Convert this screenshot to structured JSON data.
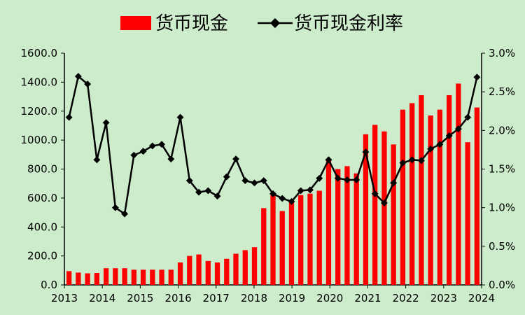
{
  "chart_data": {
    "type": "bar+line",
    "legend_placement": "top-center",
    "grid": false,
    "x_tick_labels": [
      "2013",
      "2014",
      "2015",
      "2016",
      "2017",
      "2018",
      "2019",
      "2020",
      "2021",
      "2022",
      "2023",
      "2024"
    ],
    "left_axis": {
      "range": [
        0,
        1600
      ],
      "tick_labels": [
        "0.0",
        "200.0",
        "400.0",
        "600.0",
        "800.0",
        "1000.0",
        "1200.0",
        "1400.0",
        "1600.0"
      ]
    },
    "right_axis": {
      "range": [
        0,
        3.0
      ],
      "tick_labels": [
        "0.0%",
        "0.5%",
        "1.0%",
        "1.5%",
        "2.0%",
        "2.5%",
        "3.0%"
      ]
    },
    "series": [
      {
        "name": "货币现金",
        "type": "bar",
        "axis": "left",
        "color": "#ff0000",
        "values": [
          95,
          85,
          80,
          82,
          115,
          115,
          115,
          105,
          105,
          105,
          105,
          105,
          155,
          200,
          210,
          165,
          155,
          180,
          215,
          240,
          260,
          530,
          620,
          510,
          580,
          620,
          630,
          650,
          860,
          800,
          820,
          770,
          1040,
          1105,
          1060,
          970,
          1210,
          1255,
          1310,
          1170,
          1210,
          1310,
          1390,
          985,
          1225
        ]
      },
      {
        "name": "货币现金利率",
        "type": "line",
        "axis": "right",
        "color": "#000000",
        "values": [
          2.17,
          2.7,
          2.6,
          1.62,
          2.1,
          1.0,
          0.92,
          1.68,
          1.73,
          1.8,
          1.82,
          1.63,
          2.17,
          1.35,
          1.2,
          1.22,
          1.15,
          1.4,
          1.63,
          1.35,
          1.32,
          1.35,
          1.18,
          1.12,
          1.08,
          1.22,
          1.23,
          1.38,
          1.62,
          1.38,
          1.36,
          1.36,
          1.72,
          1.18,
          1.06,
          1.32,
          1.58,
          1.62,
          1.61,
          1.76,
          1.82,
          1.93,
          2.02,
          2.17,
          2.69
        ]
      }
    ]
  }
}
